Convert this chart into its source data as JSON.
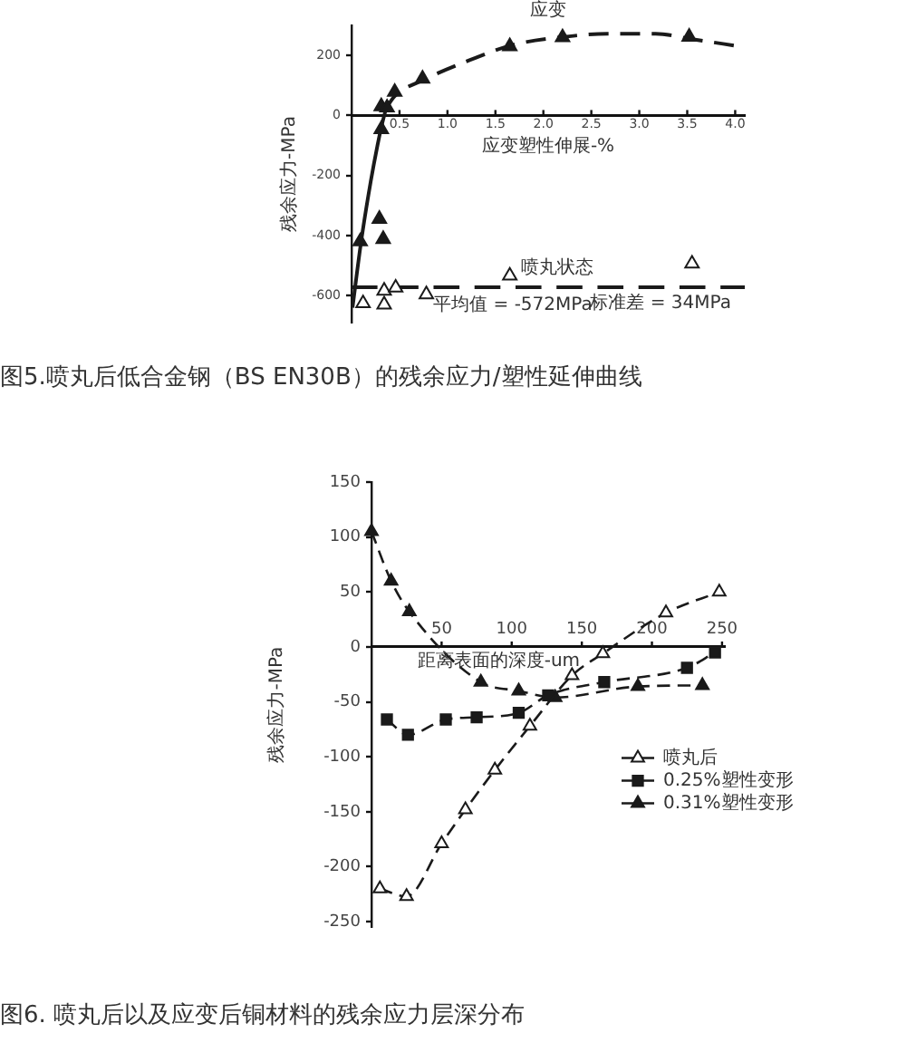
{
  "chart_data": [
    {
      "type": "scatter",
      "title": "应变",
      "xlabel": "应变塑性伸展-%",
      "ylabel": "残余应力-MPa",
      "xlim": [
        0,
        4.1
      ],
      "xticks": [
        0.5,
        {
          "value": 1,
          "label": "1.0"
        },
        1.5,
        {
          "value": 2,
          "label": "2.0"
        },
        2.5,
        {
          "value": 3,
          "label": "3.0"
        },
        3.5,
        {
          "value": 4,
          "label": "4.0"
        }
      ],
      "ylim": [
        -690,
        300
      ],
      "yticks": [
        -600,
        -400,
        -200,
        0,
        200
      ],
      "grid": false,
      "series": [
        {
          "marker": "triangle",
          "color": "#1a1a1a",
          "x": [
            0.09,
            0.29,
            0.33,
            0.31,
            0.31,
            0.37,
            0.45,
            0.74,
            1.65,
            2.2,
            3.52
          ],
          "values": [
            -420,
            -345,
            -412,
            -46,
            30,
            26,
            78,
            122,
            230,
            260,
            262
          ]
        },
        {
          "type": "line",
          "marker": "none",
          "line_style": "solid",
          "color": "#1a1a1a",
          "x": [
            0.01,
            0.1,
            0.2,
            0.27,
            0.31,
            0.36
          ],
          "values": [
            -640,
            -420,
            -220,
            -100,
            -40,
            24
          ]
        },
        {
          "type": "line",
          "marker": "none",
          "line_style": "dashed",
          "color": "#1a1a1a",
          "x": [
            0.36,
            0.45,
            0.76,
            1.23,
            1.67,
            2.17,
            2.67,
            3.17,
            3.55,
            4.05
          ],
          "values": [
            24,
            64,
            120,
            184,
            234,
            260,
            272,
            272,
            254,
            230
          ]
        },
        {
          "marker": "triangle-open",
          "color": "#1a1a1a",
          "x": [
            0.12,
            0.34,
            0.34,
            0.46,
            0.78,
            1.65,
            3.55
          ],
          "values": [
            -626,
            -584,
            -630,
            -574,
            -596,
            -534,
            -494
          ]
        }
      ],
      "ref_lines": [
        {
          "axis": "y",
          "value": -572,
          "label": "平均值 = -572MPa",
          "line_style": "dashed",
          "color": "#1a1a1a"
        }
      ],
      "annotations": [
        "喷丸状态",
        "标准差 = 34MPa",
        "图5.喷丸后低合金钢（BS EN30B）的残余应力/塑性延伸曲线"
      ]
    },
    {
      "type": "line",
      "xlabel": "距离表面的深度-um",
      "ylabel": "残余应力-MPa",
      "xlim": [
        0,
        252
      ],
      "xticks": [
        50,
        100,
        150,
        200,
        250
      ],
      "ylim": [
        -255,
        150
      ],
      "yticks": [
        -250,
        -200,
        -150,
        -100,
        -50,
        0,
        50,
        100,
        150
      ],
      "grid": false,
      "legend": "right",
      "line_style": "dashed",
      "series": [
        {
          "name": "喷丸后",
          "marker": "triangle-open",
          "color": "#1a1a1a",
          "x": [
            6,
            25,
            50,
            67,
            88,
            113,
            143,
            165,
            210,
            248
          ],
          "values": [
            -220,
            -227,
            -179,
            -148,
            -112,
            -72,
            -26,
            -6,
            31,
            50
          ]
        },
        {
          "name": "0.25%塑性变形",
          "marker": "square",
          "color": "#1a1a1a",
          "x": [
            11,
            26,
            53,
            75,
            105,
            126,
            166,
            225,
            245
          ],
          "values": [
            -66,
            -80,
            -66,
            -64,
            -60,
            -44,
            -32,
            -19,
            -5
          ]
        },
        {
          "name": "0.31%塑性变形",
          "marker": "triangle",
          "color": "#1a1a1a",
          "x": [
            0,
            14,
            27,
            78,
            105,
            131,
            190,
            236
          ],
          "values": [
            105,
            60,
            32,
            -32,
            -40,
            -46,
            -36,
            -35
          ]
        }
      ],
      "annotations": [
        "图6. 喷丸后以及应变后铜材料的残余应力层深分布"
      ]
    }
  ]
}
